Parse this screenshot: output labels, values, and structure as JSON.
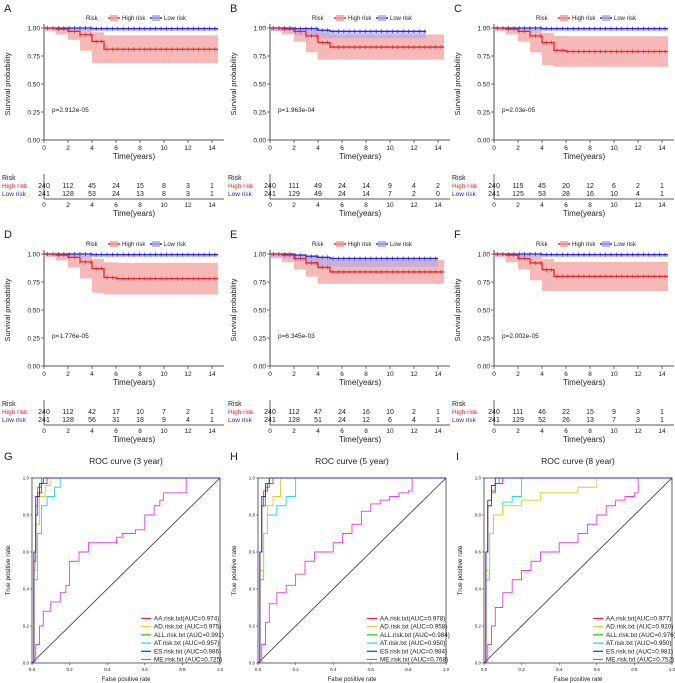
{
  "figure": {
    "colors": {
      "high": "#e8272b",
      "low": "#2b2bd6",
      "band_high": "#f4a0a0",
      "band_low": "#a9a9ee",
      "diag": "#333333"
    },
    "km_common": {
      "legend_title": "Risk",
      "legend_high": "High risk",
      "legend_low": "Low risk",
      "ylabel": "Survival probability",
      "xlabel": "Time(years)",
      "risk_label": "Risk",
      "row_high": "High risk",
      "row_low": "Low risk",
      "yticks": [
        "0.00",
        "0.25",
        "0.50",
        "0.75",
        "1.00"
      ],
      "xticks": [
        "0",
        "2",
        "4",
        "6",
        "8",
        "10",
        "12",
        "14"
      ]
    },
    "roc_common": {
      "xlabel": "False positive rate",
      "ylabel": "True positive rate",
      "xticks": [
        "0.0",
        "0.2",
        "0.4",
        "0.6",
        "0.8",
        "1.0"
      ],
      "yticks": [
        "0.0",
        "0.2",
        "0.4",
        "0.6",
        "0.8",
        "1.0"
      ],
      "legend_colors": [
        "#e8272b",
        "#e0d020",
        "#22bb22",
        "#2bd6d6",
        "#2b2bd6",
        "#e040e0"
      ]
    }
  },
  "chart_data": [
    {
      "type": "line",
      "panel": "A",
      "title": "",
      "pvalue": "p=2.912e-05",
      "ylim": [
        0,
        1
      ],
      "xlim": [
        0,
        15
      ],
      "series": [
        {
          "name": "High risk",
          "x": [
            0,
            1,
            2,
            3,
            4,
            5,
            6,
            8,
            10,
            12,
            14.5
          ],
          "values": [
            1.0,
            0.99,
            0.97,
            0.94,
            0.88,
            0.81,
            0.81,
            0.81,
            0.81,
            0.81,
            0.81
          ]
        },
        {
          "name": "Low risk",
          "x": [
            0,
            2,
            4,
            14.5
          ],
          "values": [
            1.0,
            1.0,
            0.995,
            0.995
          ]
        }
      ],
      "risk_table": {
        "high": [
          "240",
          "112",
          "45",
          "24",
          "15",
          "8",
          "3",
          "1"
        ],
        "low": [
          "241",
          "128",
          "53",
          "24",
          "13",
          "8",
          "3",
          "1"
        ]
      }
    },
    {
      "type": "line",
      "panel": "B",
      "title": "",
      "pvalue": "p=1.963e-04",
      "ylim": [
        0,
        1
      ],
      "xlim": [
        0,
        15
      ],
      "series": [
        {
          "name": "High risk",
          "x": [
            0,
            1,
            2,
            3,
            4,
            5,
            6,
            8,
            10,
            12,
            14.5
          ],
          "values": [
            1.0,
            0.99,
            0.97,
            0.93,
            0.87,
            0.83,
            0.83,
            0.83,
            0.83,
            0.83,
            0.83
          ]
        },
        {
          "name": "Low risk",
          "x": [
            0,
            2,
            4,
            5,
            8,
            13
          ],
          "values": [
            1.0,
            0.995,
            0.98,
            0.97,
            0.97,
            0.97
          ]
        }
      ],
      "risk_table": {
        "high": [
          "240",
          "111",
          "49",
          "24",
          "14",
          "9",
          "4",
          "2"
        ],
        "low": [
          "241",
          "129",
          "49",
          "24",
          "14",
          "7",
          "2",
          "0"
        ]
      }
    },
    {
      "type": "line",
      "panel": "C",
      "title": "",
      "pvalue": "p=2.03e-05",
      "ylim": [
        0,
        1
      ],
      "xlim": [
        0,
        15
      ],
      "series": [
        {
          "name": "High risk",
          "x": [
            0,
            1,
            2,
            3,
            4,
            5,
            6,
            8,
            10,
            12,
            14.5
          ],
          "values": [
            1.0,
            0.99,
            0.97,
            0.93,
            0.87,
            0.8,
            0.79,
            0.79,
            0.79,
            0.79,
            0.79
          ]
        },
        {
          "name": "Low risk",
          "x": [
            0,
            2,
            4,
            14.5
          ],
          "values": [
            1.0,
            1.0,
            0.995,
            0.995
          ]
        }
      ],
      "risk_table": {
        "high": [
          "240",
          "115",
          "45",
          "20",
          "12",
          "6",
          "2",
          "1"
        ],
        "low": [
          "241",
          "125",
          "53",
          "28",
          "16",
          "10",
          "4",
          "1"
        ]
      }
    },
    {
      "type": "line",
      "panel": "D",
      "title": "",
      "pvalue": "p=1.776e-05",
      "ylim": [
        0,
        1
      ],
      "xlim": [
        0,
        15
      ],
      "series": [
        {
          "name": "High risk",
          "x": [
            0,
            1,
            2,
            3,
            4,
            5,
            6,
            8,
            10,
            12,
            14.5
          ],
          "values": [
            1.0,
            0.99,
            0.97,
            0.93,
            0.87,
            0.79,
            0.78,
            0.78,
            0.78,
            0.78,
            0.78
          ]
        },
        {
          "name": "Low risk",
          "x": [
            0,
            2,
            4,
            14.5
          ],
          "values": [
            1.0,
            1.0,
            0.995,
            0.995
          ]
        }
      ],
      "risk_table": {
        "high": [
          "240",
          "112",
          "42",
          "17",
          "10",
          "7",
          "2",
          "1"
        ],
        "low": [
          "241",
          "128",
          "56",
          "31",
          "18",
          "9",
          "4",
          "1"
        ]
      }
    },
    {
      "type": "line",
      "panel": "E",
      "title": "",
      "pvalue": "p=6.345e-03",
      "ylim": [
        0,
        1
      ],
      "xlim": [
        0,
        15
      ],
      "series": [
        {
          "name": "High risk",
          "x": [
            0,
            1,
            2,
            3,
            4,
            5,
            6,
            8,
            10,
            12,
            14.5
          ],
          "values": [
            1.0,
            0.99,
            0.96,
            0.92,
            0.88,
            0.84,
            0.84,
            0.84,
            0.84,
            0.84,
            0.84
          ]
        },
        {
          "name": "Low risk",
          "x": [
            0,
            2,
            3,
            4,
            5,
            8,
            14
          ],
          "values": [
            1.0,
            0.99,
            0.98,
            0.97,
            0.96,
            0.96,
            0.96
          ]
        }
      ],
      "risk_table": {
        "high": [
          "240",
          "112",
          "47",
          "24",
          "16",
          "10",
          "2",
          "1"
        ],
        "low": [
          "241",
          "128",
          "51",
          "24",
          "12",
          "6",
          "4",
          "1"
        ]
      }
    },
    {
      "type": "line",
      "panel": "F",
      "title": "",
      "pvalue": "p=2.002e-05",
      "ylim": [
        0,
        1
      ],
      "xlim": [
        0,
        15
      ],
      "series": [
        {
          "name": "High risk",
          "x": [
            0,
            1,
            2,
            3,
            4,
            5,
            6,
            8,
            10,
            12,
            14.5
          ],
          "values": [
            1.0,
            0.99,
            0.96,
            0.92,
            0.86,
            0.8,
            0.8,
            0.8,
            0.8,
            0.8,
            0.8
          ]
        },
        {
          "name": "Low risk",
          "x": [
            0,
            2,
            4,
            14.5
          ],
          "values": [
            1.0,
            1.0,
            0.995,
            0.995
          ]
        }
      ],
      "risk_table": {
        "high": [
          "240",
          "111",
          "46",
          "22",
          "15",
          "9",
          "3",
          "1"
        ],
        "low": [
          "241",
          "129",
          "52",
          "26",
          "13",
          "7",
          "3",
          "1"
        ]
      }
    },
    {
      "type": "line",
      "panel": "G",
      "title": "ROC curve (3 year)",
      "xlim": [
        0,
        1
      ],
      "ylim": [
        0,
        1
      ],
      "series": [
        {
          "name": "AA.risk.txt(AUC=0.974)",
          "x": [
            0,
            0.01,
            0.02,
            0.03,
            0.05,
            0.08,
            1
          ],
          "values": [
            0,
            0.55,
            0.8,
            0.92,
            0.97,
            1.0,
            1.0
          ]
        },
        {
          "name": "AD.risk.txt (AUC=0.975)",
          "x": [
            0,
            0.01,
            0.02,
            0.04,
            0.07,
            0.1,
            1
          ],
          "values": [
            0,
            0.5,
            0.75,
            0.9,
            0.96,
            1.0,
            1.0
          ]
        },
        {
          "name": "ALL.risk.txt (AUC=0.991)",
          "x": [
            0,
            0.01,
            0.02,
            0.03,
            0.05,
            1
          ],
          "values": [
            0,
            0.6,
            0.85,
            0.95,
            1.0,
            1.0
          ]
        },
        {
          "name": "AT.risk.txt (AUC=0.957)",
          "x": [
            0,
            0.01,
            0.03,
            0.05,
            0.08,
            0.12,
            0.15,
            1
          ],
          "values": [
            0,
            0.45,
            0.7,
            0.85,
            0.9,
            0.95,
            1.0,
            1.0
          ]
        },
        {
          "name": "ES.risk.txt (AUC=0.986)",
          "x": [
            0,
            0.01,
            0.02,
            0.04,
            0.06,
            0.6,
            1
          ],
          "values": [
            0,
            0.6,
            0.9,
            0.97,
            1.0,
            1.0,
            1.0
          ]
        },
        {
          "name": "ME.risk.txt (AUC=0.725)",
          "x": [
            0,
            0.02,
            0.04,
            0.06,
            0.1,
            0.15,
            0.18,
            0.2,
            0.25,
            0.3,
            0.45,
            0.48,
            0.55,
            0.6,
            0.65,
            0.68,
            0.7,
            0.8,
            0.82,
            1
          ],
          "values": [
            0,
            0.1,
            0.2,
            0.28,
            0.33,
            0.38,
            0.42,
            0.55,
            0.6,
            0.65,
            0.68,
            0.7,
            0.72,
            0.8,
            0.85,
            0.88,
            0.92,
            0.92,
            1.0,
            1.0
          ]
        }
      ]
    },
    {
      "type": "line",
      "panel": "H",
      "title": "ROC curve (5 year)",
      "xlim": [
        0,
        1
      ],
      "ylim": [
        0,
        1
      ],
      "series": [
        {
          "name": "AA.risk.txt(AUC=0.978)",
          "x": [
            0,
            0.01,
            0.02,
            0.03,
            0.05,
            0.08,
            1
          ],
          "values": [
            0,
            0.6,
            0.85,
            0.93,
            0.97,
            1.0,
            1.0
          ]
        },
        {
          "name": "AD.risk.txt (AUC=0.958)",
          "x": [
            0,
            0.01,
            0.03,
            0.05,
            0.08,
            0.12,
            1
          ],
          "values": [
            0,
            0.5,
            0.7,
            0.85,
            0.9,
            1.0,
            1.0
          ]
        },
        {
          "name": "ALL.risk.txt (AUC=0.984)",
          "x": [
            0,
            0.01,
            0.02,
            0.04,
            0.06,
            1
          ],
          "values": [
            0,
            0.6,
            0.85,
            0.95,
            1.0,
            1.0
          ]
        },
        {
          "name": "AT.risk.txt (AUC=0.950)",
          "x": [
            0,
            0.01,
            0.03,
            0.05,
            0.1,
            0.15,
            0.2,
            1
          ],
          "values": [
            0,
            0.45,
            0.7,
            0.8,
            0.85,
            0.9,
            1.0,
            1.0
          ]
        },
        {
          "name": "ES.risk.txt (AUC=0.984)",
          "x": [
            0,
            0.01,
            0.02,
            0.04,
            0.06,
            1
          ],
          "values": [
            0,
            0.6,
            0.9,
            0.97,
            1.0,
            1.0
          ]
        },
        {
          "name": "ME.risk.txt (AUC=0.768)",
          "x": [
            0,
            0.02,
            0.04,
            0.06,
            0.1,
            0.15,
            0.2,
            0.25,
            0.3,
            0.4,
            0.45,
            0.5,
            0.55,
            0.6,
            0.65,
            0.7,
            0.75,
            0.8,
            0.82,
            1
          ],
          "values": [
            0,
            0.1,
            0.22,
            0.32,
            0.38,
            0.42,
            0.48,
            0.55,
            0.6,
            0.65,
            0.7,
            0.75,
            0.82,
            0.86,
            0.88,
            0.9,
            0.92,
            0.93,
            1.0,
            1.0
          ]
        }
      ]
    },
    {
      "type": "line",
      "panel": "I",
      "title": "ROC curve (8 year)",
      "xlim": [
        0,
        1
      ],
      "ylim": [
        0,
        1
      ],
      "series": [
        {
          "name": "AA.risk.txt(AUC=0.977)",
          "x": [
            0,
            0.01,
            0.02,
            0.04,
            0.06,
            0.1,
            1
          ],
          "values": [
            0,
            0.6,
            0.85,
            0.93,
            0.97,
            1.0,
            1.0
          ]
        },
        {
          "name": "AD.risk.txt (AUC=0.920)",
          "x": [
            0,
            0.01,
            0.03,
            0.05,
            0.1,
            0.2,
            0.3,
            0.5,
            0.6,
            1
          ],
          "values": [
            0,
            0.5,
            0.7,
            0.8,
            0.85,
            0.88,
            0.92,
            0.95,
            1.0,
            1.0
          ]
        },
        {
          "name": "ALL.risk.txt (AUC=0.976)",
          "x": [
            0,
            0.01,
            0.02,
            0.04,
            0.06,
            0.08,
            1
          ],
          "values": [
            0,
            0.6,
            0.85,
            0.92,
            0.97,
            1.0,
            1.0
          ]
        },
        {
          "name": "AT.risk.txt (AUC=0.950)",
          "x": [
            0,
            0.01,
            0.03,
            0.05,
            0.1,
            0.15,
            0.2,
            1
          ],
          "values": [
            0,
            0.45,
            0.7,
            0.8,
            0.87,
            0.9,
            1.0,
            1.0
          ]
        },
        {
          "name": "ES.risk.txt (AUC=0.981)",
          "x": [
            0,
            0.01,
            0.02,
            0.04,
            0.06,
            1
          ],
          "values": [
            0,
            0.6,
            0.88,
            0.96,
            1.0,
            1.0
          ]
        },
        {
          "name": "ME.risk.txt (AUC=0.752)",
          "x": [
            0,
            0.02,
            0.04,
            0.06,
            0.1,
            0.15,
            0.2,
            0.25,
            0.3,
            0.4,
            0.5,
            0.55,
            0.6,
            0.65,
            0.7,
            0.75,
            0.8,
            0.82,
            1
          ],
          "values": [
            0,
            0.1,
            0.2,
            0.3,
            0.38,
            0.45,
            0.5,
            0.55,
            0.6,
            0.65,
            0.7,
            0.75,
            0.8,
            0.85,
            0.88,
            0.9,
            0.92,
            1.0,
            1.0
          ]
        }
      ]
    }
  ]
}
